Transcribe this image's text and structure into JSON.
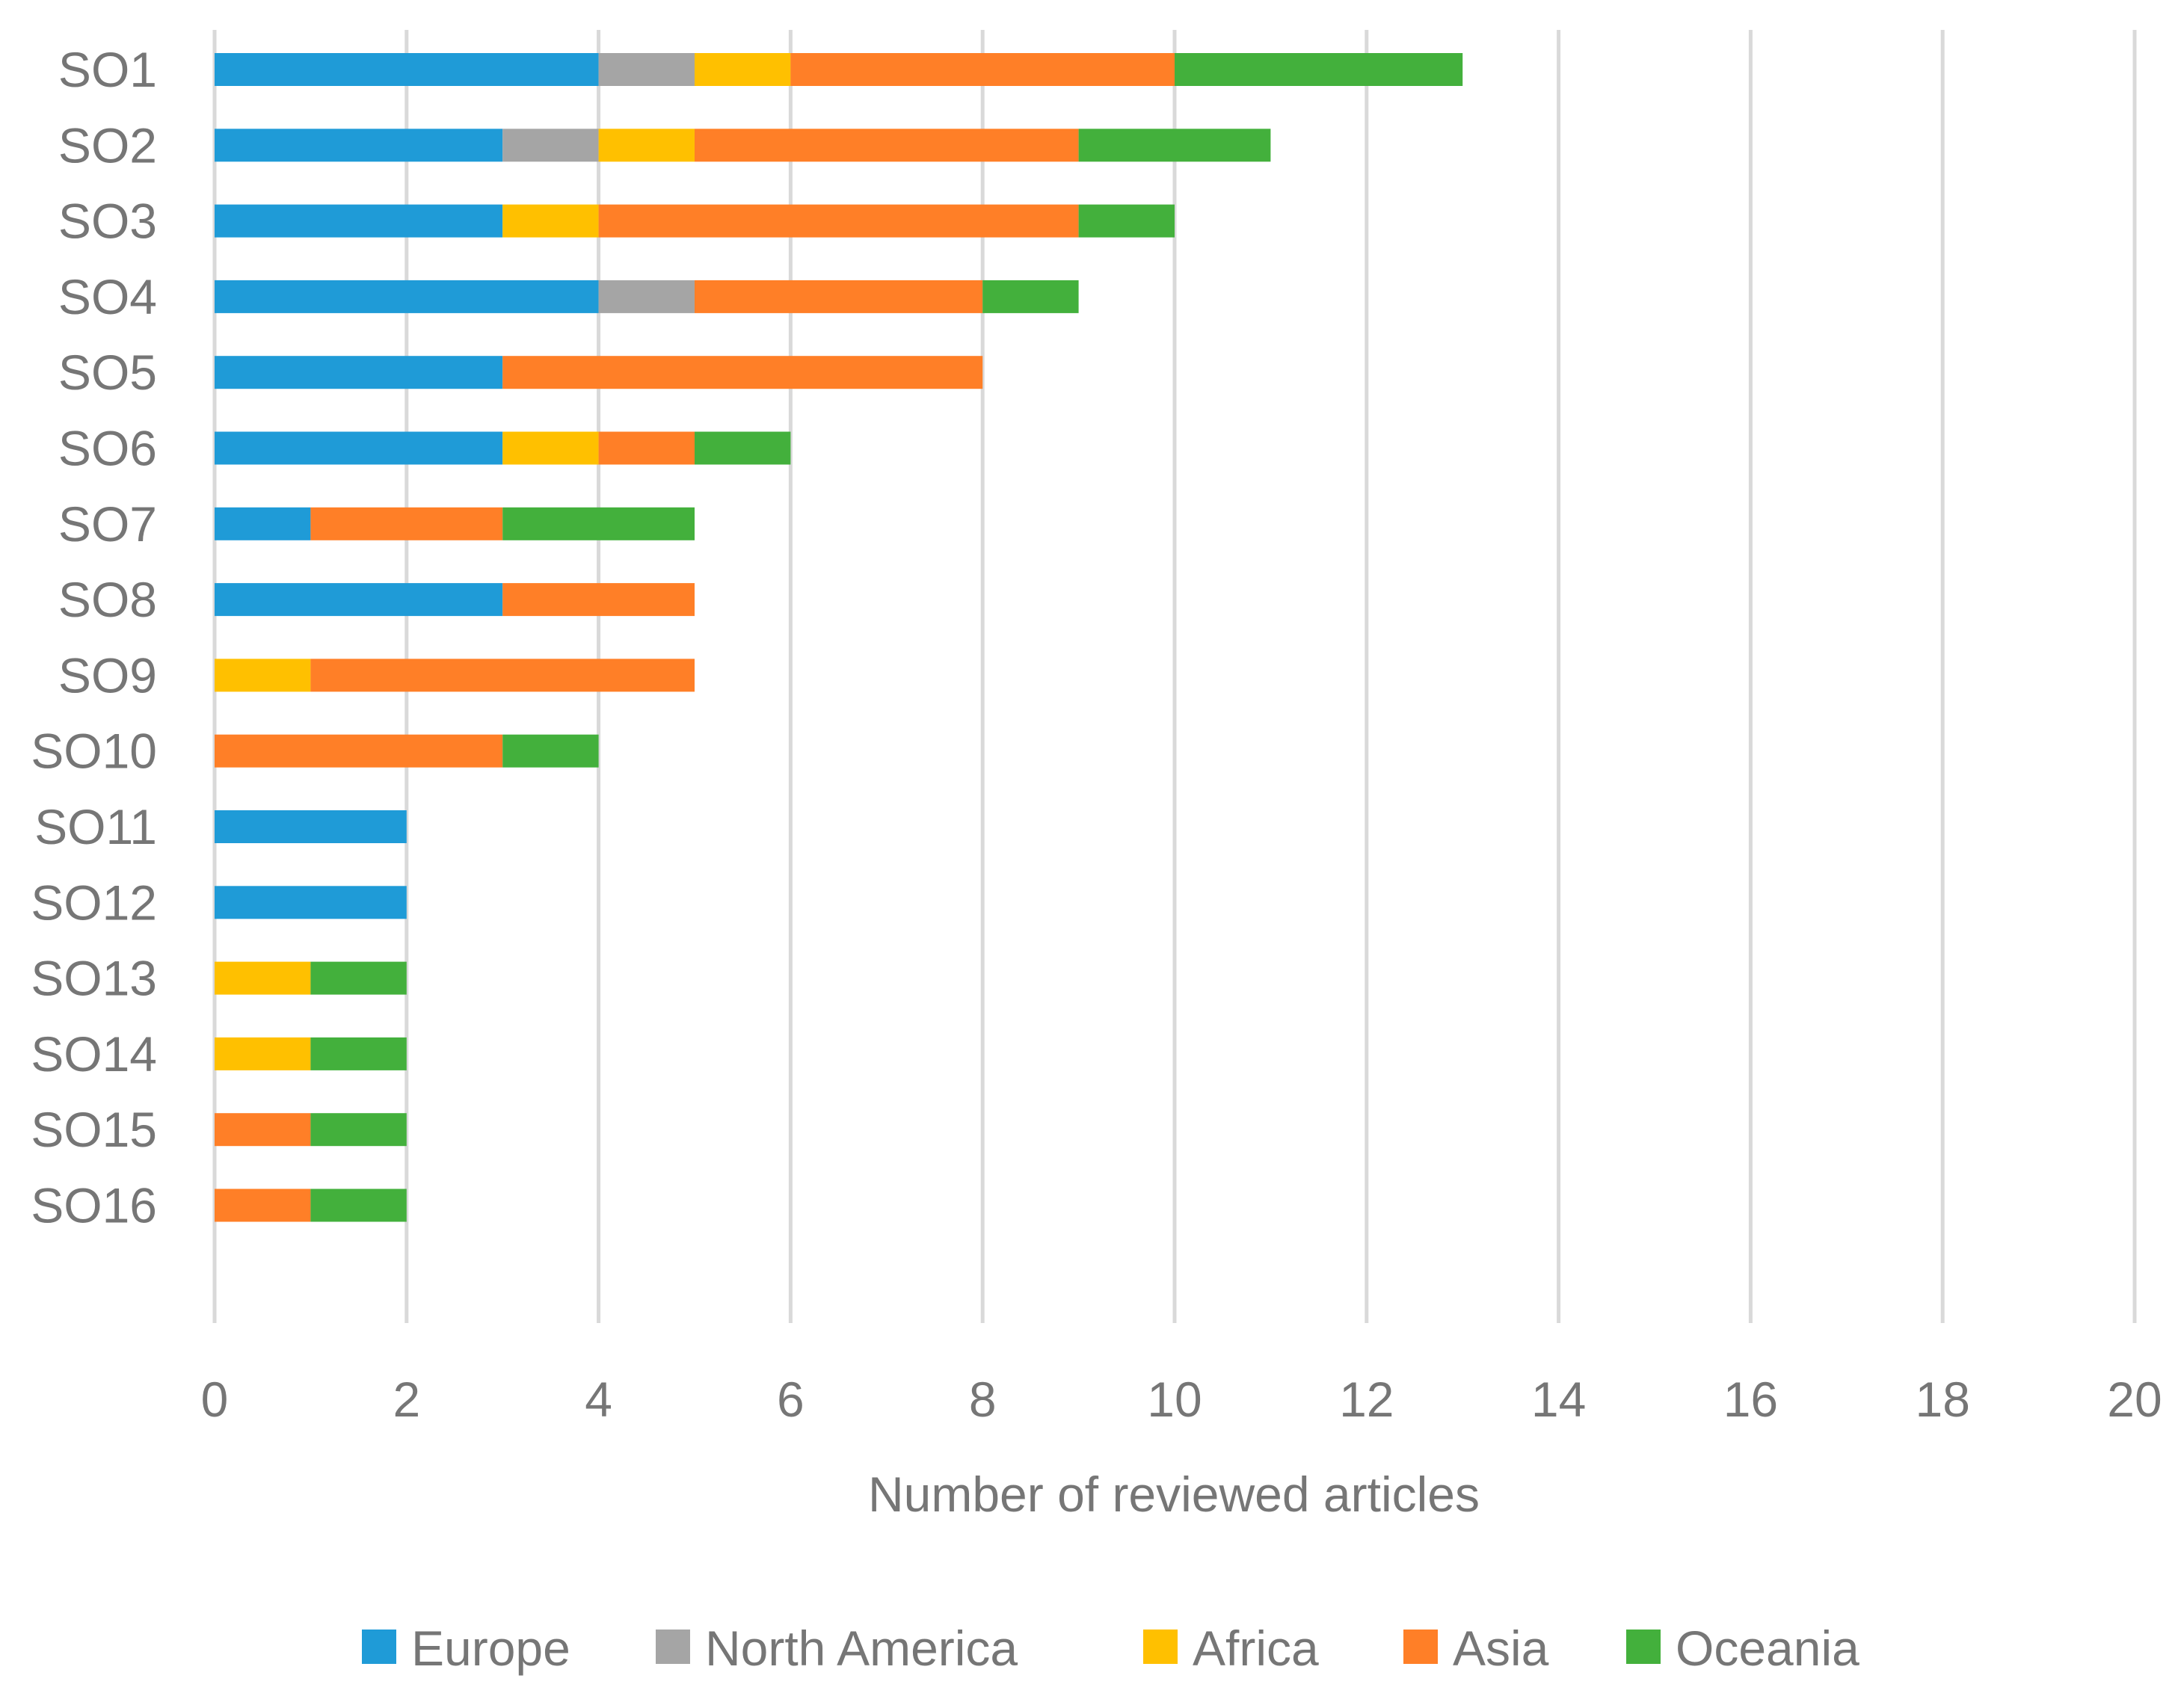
{
  "chart_data": {
    "type": "bar",
    "orientation": "horizontal",
    "stacked": true,
    "title": "",
    "xlabel": "Number of reviewed articles",
    "ylabel": "",
    "xlim": [
      0,
      20
    ],
    "xticks": [
      0,
      2,
      4,
      6,
      8,
      10,
      12,
      14,
      16,
      18,
      20
    ],
    "grid": "vertical",
    "legend_position": "bottom",
    "categories": [
      "SO1",
      "SO2",
      "SO3",
      "SO4",
      "SO5",
      "SO6",
      "SO7",
      "SO8",
      "SO9",
      "SO10",
      "SO11",
      "SO12",
      "SO13",
      "SO14",
      "SO15",
      "SO16"
    ],
    "series": [
      {
        "name": "Europe",
        "color": "#1f9bd7",
        "values": [
          4,
          3,
          3,
          4,
          3,
          3,
          1,
          3,
          0,
          0,
          2,
          2,
          0,
          0,
          0,
          0
        ]
      },
      {
        "name": "North America",
        "color": "#a5a5a5",
        "values": [
          1,
          1,
          0,
          1,
          0,
          0,
          0,
          0,
          0,
          0,
          0,
          0,
          0,
          0,
          0,
          0
        ]
      },
      {
        "name": "Africa",
        "color": "#ffc000",
        "values": [
          1,
          1,
          1,
          0,
          0,
          1,
          0,
          0,
          1,
          0,
          0,
          0,
          1,
          1,
          0,
          0
        ]
      },
      {
        "name": "Asia",
        "color": "#ff7f27",
        "values": [
          4,
          4,
          5,
          3,
          5,
          1,
          2,
          2,
          4,
          3,
          0,
          0,
          0,
          0,
          1,
          1
        ]
      },
      {
        "name": "Oceania",
        "color": "#43b03c",
        "values": [
          3,
          2,
          1,
          1,
          0,
          1,
          2,
          0,
          0,
          1,
          0,
          0,
          1,
          1,
          1,
          1
        ]
      }
    ],
    "gridline_color": "#d9d9d9"
  }
}
